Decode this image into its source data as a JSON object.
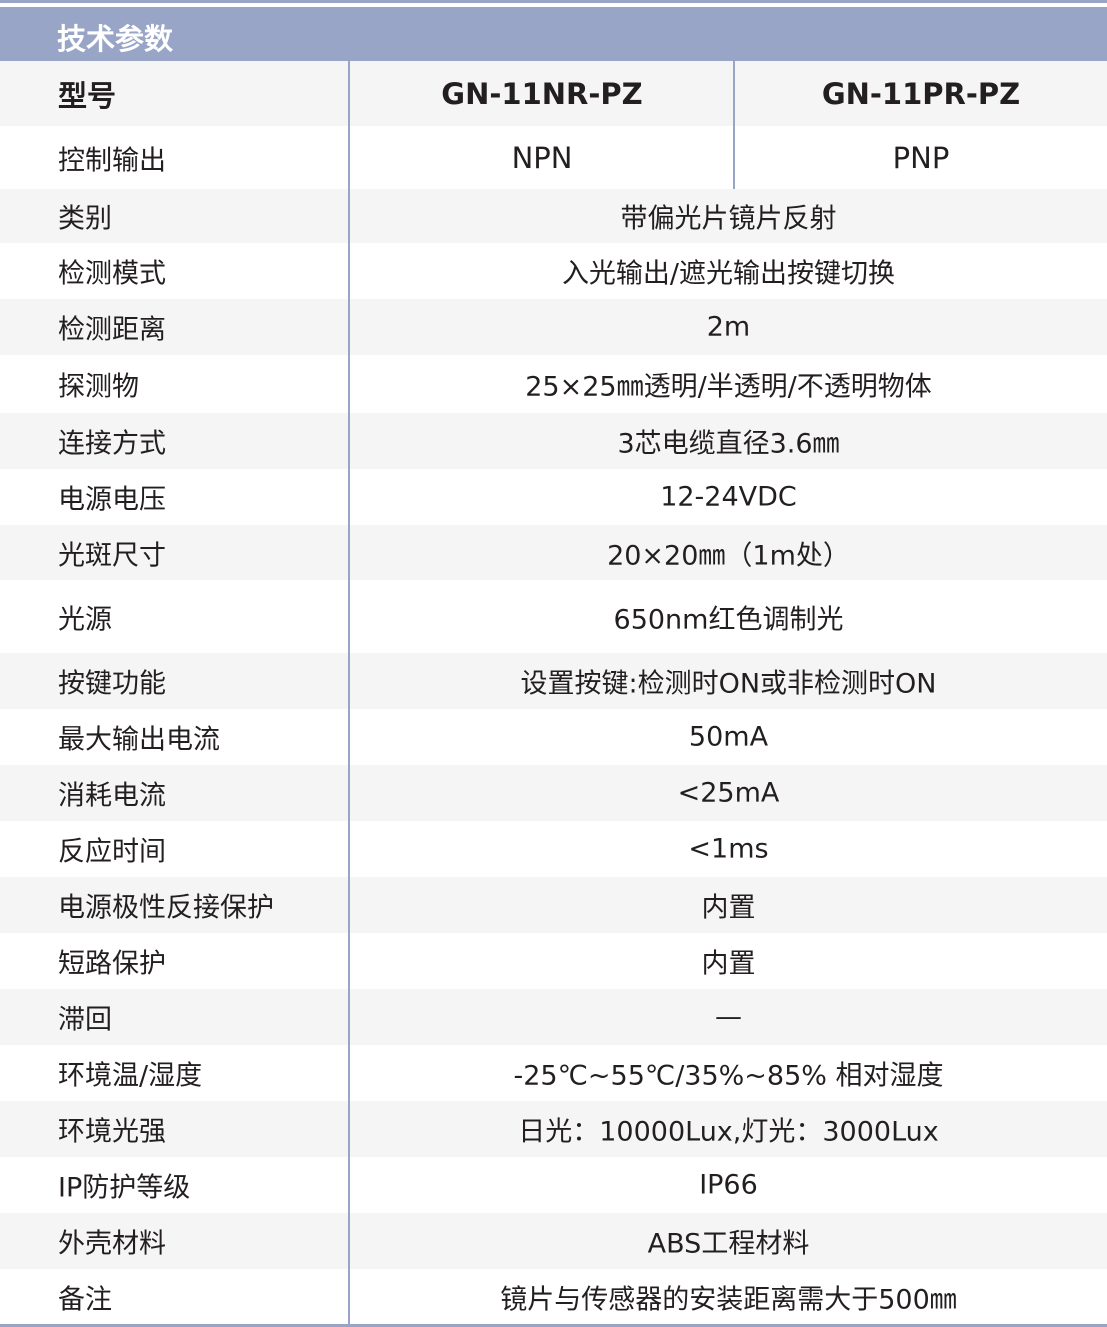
{
  "title": "技术参数",
  "model_label": "型号",
  "models": [
    "GN-11NR-PZ",
    "GN-11PR-PZ"
  ],
  "output_label": "控制输出",
  "outputs": [
    "NPN",
    "PNP"
  ],
  "rows": [
    {
      "label": "类别",
      "value": "带偏光片镜片反射"
    },
    {
      "label": "检测模式",
      "value": "入光输出/遮光输出按键切换"
    },
    {
      "label": "检测距离",
      "value": "2m"
    },
    {
      "label": "探测物",
      "value": "25×25㎜透明/半透明/不透明物体"
    },
    {
      "label": "连接方式",
      "value": "3芯电缆直径3.6㎜"
    },
    {
      "label": "电源电压",
      "value": "12-24VDC"
    },
    {
      "label": "光斑尺寸",
      "value": "20×20㎜（1m处）"
    },
    {
      "label": "光源",
      "value": "650nm红色调制光"
    },
    {
      "label": "按键功能",
      "value": "设置按键:检测时ON或非检测时ON"
    },
    {
      "label": "最大输出电流",
      "value": "50mA"
    },
    {
      "label": "消耗电流",
      "value": "<25mA"
    },
    {
      "label": "反应时间",
      "value": "<1ms"
    },
    {
      "label": "电源极性反接保护",
      "value": "内置"
    },
    {
      "label": "短路保护",
      "value": "内置"
    },
    {
      "label": "滞回",
      "value": "—"
    },
    {
      "label": "环境温/湿度",
      "value": "-25℃~55℃/35%~85% 相对湿度"
    },
    {
      "label": "环境光强",
      "value": "日光：10000Lux,灯光：3000Lux"
    },
    {
      "label": "IP防护等级",
      "value": "IP66"
    },
    {
      "label": "外壳材料",
      "value": "ABS工程材料"
    },
    {
      "label": "备注",
      "value": "镜片与传感器的安装距离需大于500㎜"
    }
  ],
  "colors": {
    "accent": "#98a5c6",
    "row_alt": "#f5f5f5",
    "text": "#231f20"
  }
}
